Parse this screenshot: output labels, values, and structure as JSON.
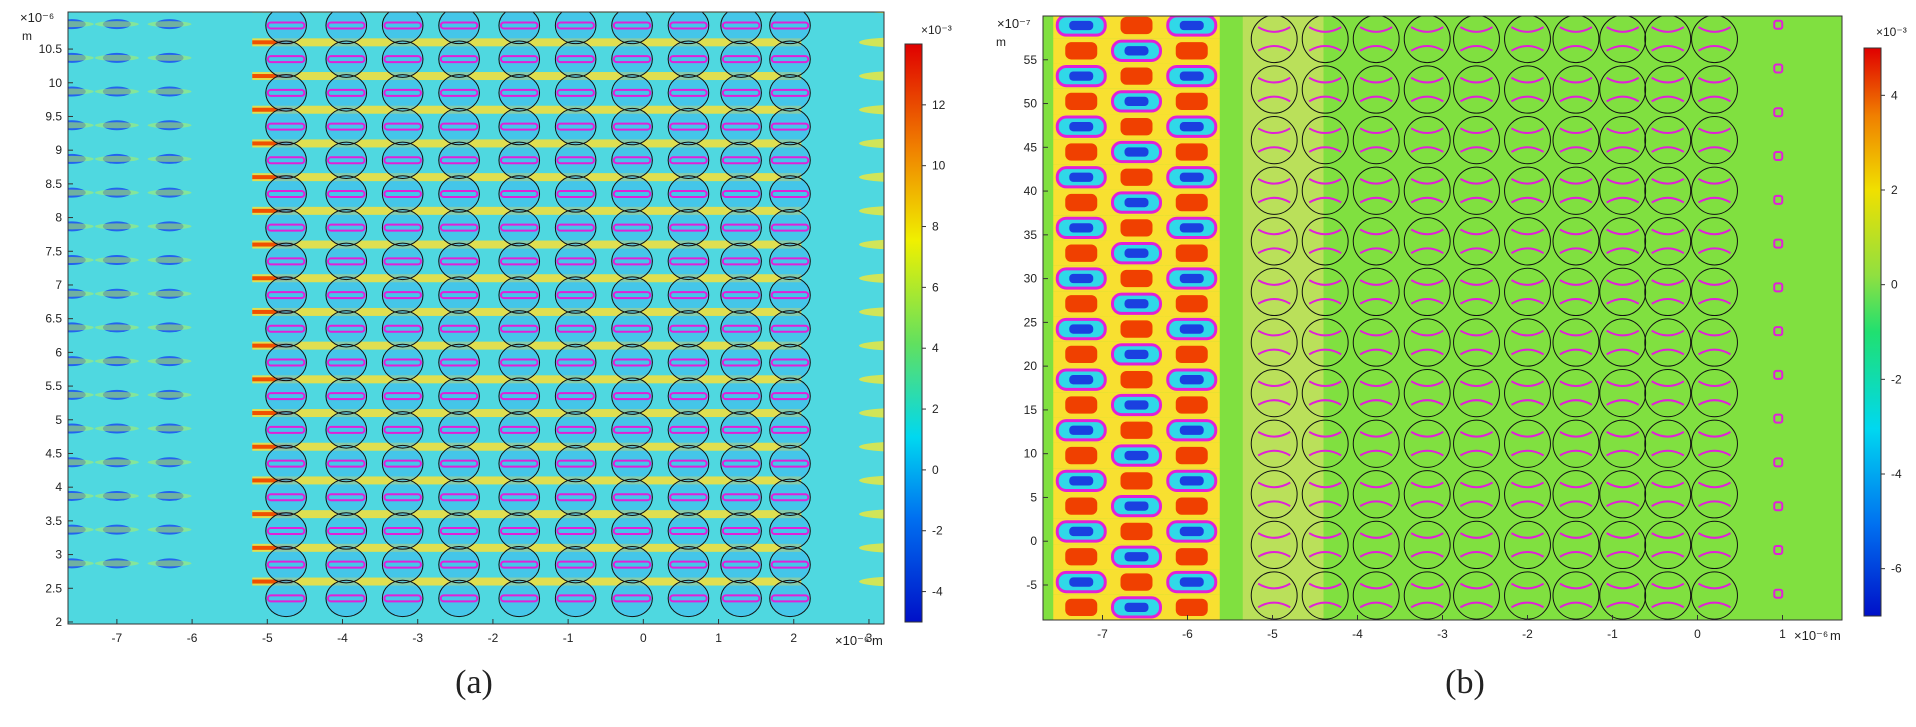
{
  "chart_data": [
    {
      "type": "heatmap",
      "panel_label": "(a)",
      "x_multiplier": "×10⁻⁶",
      "x_unit": "m",
      "y_multiplier": "×10⁻⁶",
      "y_unit": "m",
      "xlim": [
        -7.65,
        3.2
      ],
      "ylim": [
        1.97,
        11.05
      ],
      "x_ticks": [
        -7,
        -6,
        -5,
        -4,
        -3,
        -2,
        -1,
        0,
        1,
        2,
        3
      ],
      "x_tick_labels": [
        "-7",
        "-6",
        "-5",
        "-4",
        "-3",
        "-2",
        "-1",
        "0",
        "1",
        "2",
        "3"
      ],
      "y_ticks": [
        2,
        2.5,
        3,
        3.5,
        4,
        4.5,
        5,
        5.5,
        6,
        6.5,
        7,
        7.5,
        8,
        8.5,
        9,
        9.5,
        10,
        10.5
      ],
      "y_tick_labels": [
        "2",
        "2.5",
        "3",
        "3.5",
        "4",
        "4.5",
        "5",
        "5.5",
        "6",
        "6.5",
        "7",
        "7.5",
        "8",
        "8.5",
        "9",
        "9.5",
        "10",
        "10.5"
      ],
      "colorbar": {
        "multiplier": "×10⁻³",
        "range": [
          -5,
          14
        ],
        "ticks": [
          -4,
          -2,
          0,
          2,
          4,
          6,
          8,
          10,
          12
        ],
        "tick_labels": [
          "-4",
          "-2",
          "0",
          "2",
          "4",
          "6",
          "8",
          "10",
          "12"
        ]
      },
      "background_color": "#4fd8e0",
      "circles": {
        "x_centers": [
          -4.75,
          -3.95,
          -3.2,
          -2.45,
          -1.65,
          -0.9,
          -0.15,
          0.6,
          1.3,
          1.95
        ],
        "radius": 0.27,
        "y_first": 2.35,
        "y_step": 0.5,
        "rows": 18
      },
      "contour_color": "#e020d8"
    },
    {
      "type": "heatmap",
      "panel_label": "(b)",
      "x_multiplier": "×10⁻⁶",
      "x_unit": "m",
      "y_multiplier": "×10⁻⁷",
      "y_unit": "m",
      "xlim": [
        -7.7,
        1.7
      ],
      "ylim": [
        -9,
        60
      ],
      "x_ticks": [
        -7,
        -6,
        -5,
        -4,
        -3,
        -2,
        -1,
        0,
        1
      ],
      "x_tick_labels": [
        "-7",
        "-6",
        "-5",
        "-4",
        "-3",
        "-2",
        "-1",
        "0",
        "1"
      ],
      "y_ticks": [
        -5,
        0,
        5,
        10,
        15,
        20,
        25,
        30,
        35,
        40,
        45,
        50,
        55
      ],
      "y_tick_labels": [
        "-5",
        "0",
        "5",
        "10",
        "15",
        "20",
        "25",
        "30",
        "35",
        "40",
        "45",
        "50",
        "55"
      ],
      "colorbar": {
        "multiplier": "×10⁻³",
        "range": [
          -7,
          5
        ],
        "ticks": [
          -6,
          -4,
          -2,
          0,
          2,
          4
        ],
        "tick_labels": [
          "-6",
          "-4",
          "-2",
          "0",
          "2",
          "4"
        ]
      },
      "background_color": "#80e040",
      "circles": {
        "x_centers": [
          -4.98,
          -4.38,
          -3.78,
          -3.18,
          -2.6,
          -2.0,
          -1.43,
          -0.88,
          -0.35,
          0.2
        ],
        "radius": 0.27,
        "y_first": -6.2,
        "y_step": 5.78,
        "rows": 12
      },
      "contour_color": "#e020d8"
    }
  ]
}
